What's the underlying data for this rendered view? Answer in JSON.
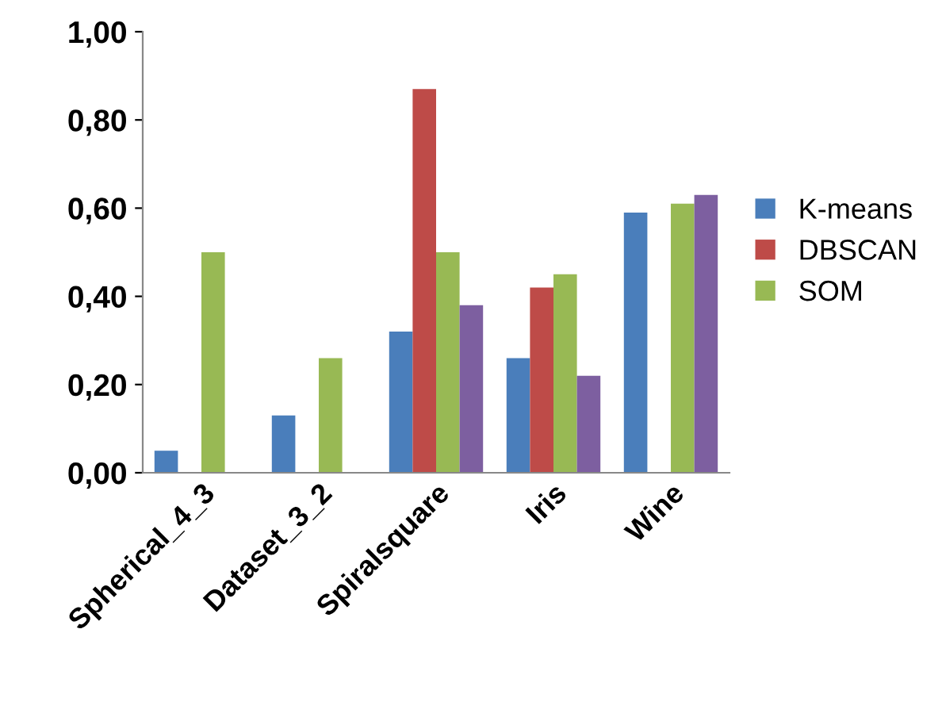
{
  "chart_data": {
    "type": "bar",
    "categories": [
      "Spherical_4_3",
      "Dataset_3_2",
      "Spiralsquare",
      "Iris",
      "Wine"
    ],
    "series": [
      {
        "name": "K-means",
        "color": "#4a7ebb",
        "values": [
          0.05,
          0.13,
          0.32,
          0.26,
          0.59
        ]
      },
      {
        "name": "DBSCAN",
        "color": "#be4b48",
        "values": [
          0,
          0,
          0.87,
          0.42,
          0
        ]
      },
      {
        "name": "SOM",
        "color": "#98b954",
        "values": [
          0.5,
          0.26,
          0.5,
          0.45,
          0.61
        ]
      },
      {
        "color": "#7d5fa0",
        "values": [
          0,
          0,
          0.38,
          0.22,
          0.63
        ]
      }
    ],
    "ylim": [
      0,
      1
    ],
    "yticks": [
      {
        "value": 0,
        "label": "0,00"
      },
      {
        "value": 0.2,
        "label": "0,20"
      },
      {
        "value": 0.4,
        "label": "0,40"
      },
      {
        "value": 0.6,
        "label": "0,60"
      },
      {
        "value": 0.8,
        "label": "0,80"
      },
      {
        "value": 1,
        "label": "1,00"
      }
    ],
    "grid": false,
    "legend": "right"
  }
}
